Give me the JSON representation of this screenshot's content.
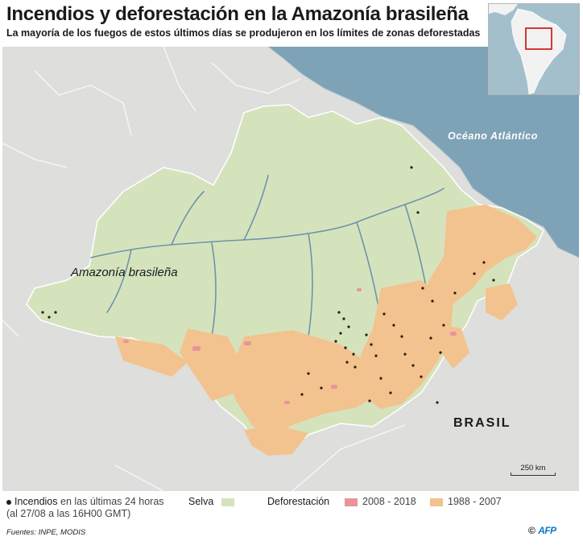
{
  "title": "Incendios y deforestación en la Amazonía brasileña",
  "subtitle": "La mayoría de los fuegos de estos últimos días se produjeron en los límites de zonas deforestadas",
  "map": {
    "labels": {
      "ocean": "Océano Atlántico",
      "region": "Amazonía brasileña",
      "country": "BRASIL"
    },
    "scale": "250 km",
    "colors": {
      "ocean": "#7ea3b6",
      "land": "#dededc",
      "forest": "#d5e3bd",
      "river": "#6f93a8",
      "deforestation_2008_2018": "#e8949b",
      "deforestation_1988_2007": "#f2c38f",
      "fire": "#2b1d10",
      "inset_highlight": "#d32222"
    }
  },
  "legend": {
    "fires_label": "Incendios",
    "fires_detail": "en las últimas 24 horas",
    "fires_date": "(al 27/08 a las 16H00 GMT)",
    "forest_label": "Selva",
    "deforestation_label": "Deforestación",
    "period_recent": "2008 - 2018",
    "period_old": "1988 - 2007"
  },
  "footer": {
    "sources": "Fuentes: INPE, MODIS",
    "credit_symbol": "©",
    "credit_brand": "AFP"
  }
}
